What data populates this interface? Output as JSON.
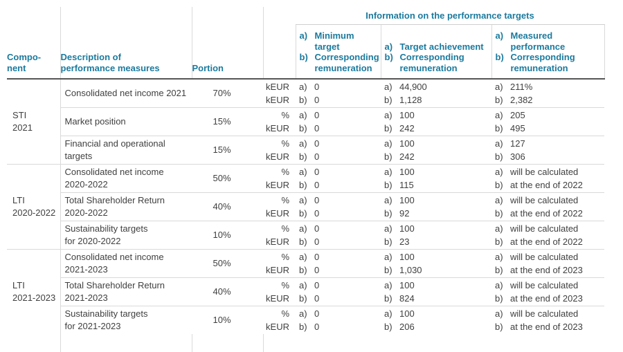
{
  "colors": {
    "accent_teal": "#1b7a9e",
    "body_text": "#3f3f3f",
    "grid_line": "#d9d9d9",
    "header_rule": "#555555",
    "background": "#ffffff"
  },
  "header": {
    "info_title": "Information on the performance targets",
    "component": [
      "Compo-",
      "nent"
    ],
    "description": [
      "Description of",
      "performance measures"
    ],
    "portion": "Portion",
    "cols": {
      "min": {
        "a_label": "a)",
        "a_text": "Minimum target",
        "b_label": "b)",
        "b_text": "Corresponding remuneration"
      },
      "target": {
        "a_label": "a)",
        "a_text": "Target achievement",
        "b_label": "b)",
        "b_text": "Corresponding remuneration"
      },
      "measured": {
        "a_label": "a)",
        "a_text": "Measured performance",
        "b_label": "b)",
        "b_text": "Corresponding remuneration"
      }
    }
  },
  "ab_labels": [
    "a)",
    "b)"
  ],
  "groups": [
    {
      "component": [
        "STI",
        "2021"
      ],
      "rows": [
        {
          "description": [
            "Consolidated net income 2021"
          ],
          "portion": "70%",
          "units": [
            "kEUR",
            "kEUR"
          ],
          "min": [
            "0",
            "0"
          ],
          "target": [
            "44,900",
            "1,128"
          ],
          "measured": [
            "211%",
            "2,382"
          ]
        },
        {
          "description": [
            "Market position"
          ],
          "portion": "15%",
          "units": [
            "%",
            "kEUR"
          ],
          "min": [
            "0",
            "0"
          ],
          "target": [
            "100",
            "242"
          ],
          "measured": [
            "205",
            "495"
          ]
        },
        {
          "description": [
            "Financial and operational",
            "targets"
          ],
          "portion": "15%",
          "units": [
            "%",
            "kEUR"
          ],
          "min": [
            "0",
            "0"
          ],
          "target": [
            "100",
            "242"
          ],
          "measured": [
            "127",
            "306"
          ]
        }
      ]
    },
    {
      "component": [
        "LTI",
        "2020-2022"
      ],
      "rows": [
        {
          "description": [
            "Consolidated net income",
            "2020-2022"
          ],
          "portion": "50%",
          "units": [
            "%",
            "kEUR"
          ],
          "min": [
            "0",
            "0"
          ],
          "target": [
            "100",
            "115"
          ],
          "measured": [
            "will be calculated",
            "at the end of 2022"
          ]
        },
        {
          "description": [
            "Total Shareholder Return",
            "2020-2022"
          ],
          "portion": "40%",
          "units": [
            "%",
            "kEUR"
          ],
          "min": [
            "0",
            "0"
          ],
          "target": [
            "100",
            "92"
          ],
          "measured": [
            "will be calculated",
            "at the end of 2022"
          ]
        },
        {
          "description": [
            "Sustainability targets",
            "for 2020-2022"
          ],
          "portion": "10%",
          "units": [
            "%",
            "kEUR"
          ],
          "min": [
            "0",
            "0"
          ],
          "target": [
            "100",
            "23"
          ],
          "measured": [
            "will be calculated",
            "at the end of 2022"
          ]
        }
      ]
    },
    {
      "component": [
        "LTI",
        "2021-2023"
      ],
      "rows": [
        {
          "description": [
            "Consolidated net income",
            "2021-2023"
          ],
          "portion": "50%",
          "units": [
            "%",
            "kEUR"
          ],
          "min": [
            "0",
            "0"
          ],
          "target": [
            "100",
            "1,030"
          ],
          "measured": [
            "will be calculated",
            "at the end of 2023"
          ]
        },
        {
          "description": [
            "Total Shareholder Return",
            "2021-2023"
          ],
          "portion": "40%",
          "units": [
            "%",
            "kEUR"
          ],
          "min": [
            "0",
            "0"
          ],
          "target": [
            "100",
            "824"
          ],
          "measured": [
            "will be calculated",
            "at the end of 2023"
          ]
        },
        {
          "description": [
            "Sustainability targets",
            "for 2021-2023"
          ],
          "portion": "10%",
          "units": [
            "%",
            "kEUR"
          ],
          "min": [
            "0",
            "0"
          ],
          "target": [
            "100",
            "206"
          ],
          "measured": [
            "will be calculated",
            "at the end of 2023"
          ]
        }
      ]
    }
  ]
}
